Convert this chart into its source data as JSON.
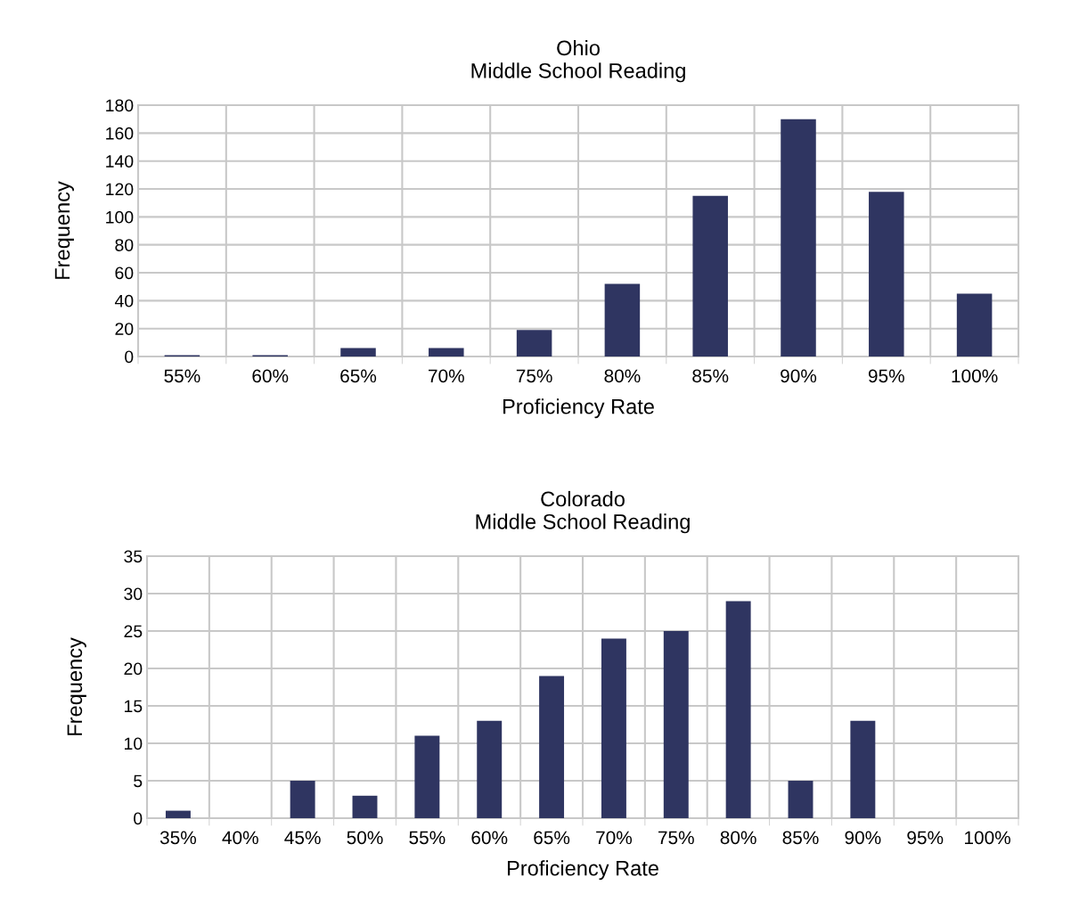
{
  "chart_data": [
    {
      "type": "bar",
      "title": "Ohio\nMiddle School Reading",
      "xlabel": "Proficiency Rate",
      "ylabel": "Frequency",
      "categories": [
        "55%",
        "60%",
        "65%",
        "70%",
        "75%",
        "80%",
        "85%",
        "90%",
        "95%",
        "100%"
      ],
      "values": [
        1,
        1,
        6,
        6,
        19,
        52,
        115,
        170,
        118,
        45
      ],
      "color": "#2f3561",
      "ylim": [
        0,
        180
      ],
      "yticks": [
        0,
        20,
        40,
        60,
        80,
        100,
        120,
        140,
        160,
        180
      ],
      "grid": true,
      "legend": false
    },
    {
      "type": "bar",
      "title": "Colorado\nMiddle School Reading",
      "xlabel": "Proficiency Rate",
      "ylabel": "Frequency",
      "categories": [
        "35%",
        "40%",
        "45%",
        "50%",
        "55%",
        "60%",
        "65%",
        "70%",
        "75%",
        "80%",
        "85%",
        "90%",
        "95%",
        "100%"
      ],
      "values": [
        1,
        0,
        5,
        3,
        11,
        13,
        19,
        24,
        25,
        29,
        5,
        13,
        0,
        0
      ],
      "color": "#2f3561",
      "ylim": [
        0,
        35
      ],
      "yticks": [
        0,
        5,
        10,
        15,
        20,
        25,
        30,
        35
      ],
      "grid": true,
      "legend": false
    }
  ]
}
